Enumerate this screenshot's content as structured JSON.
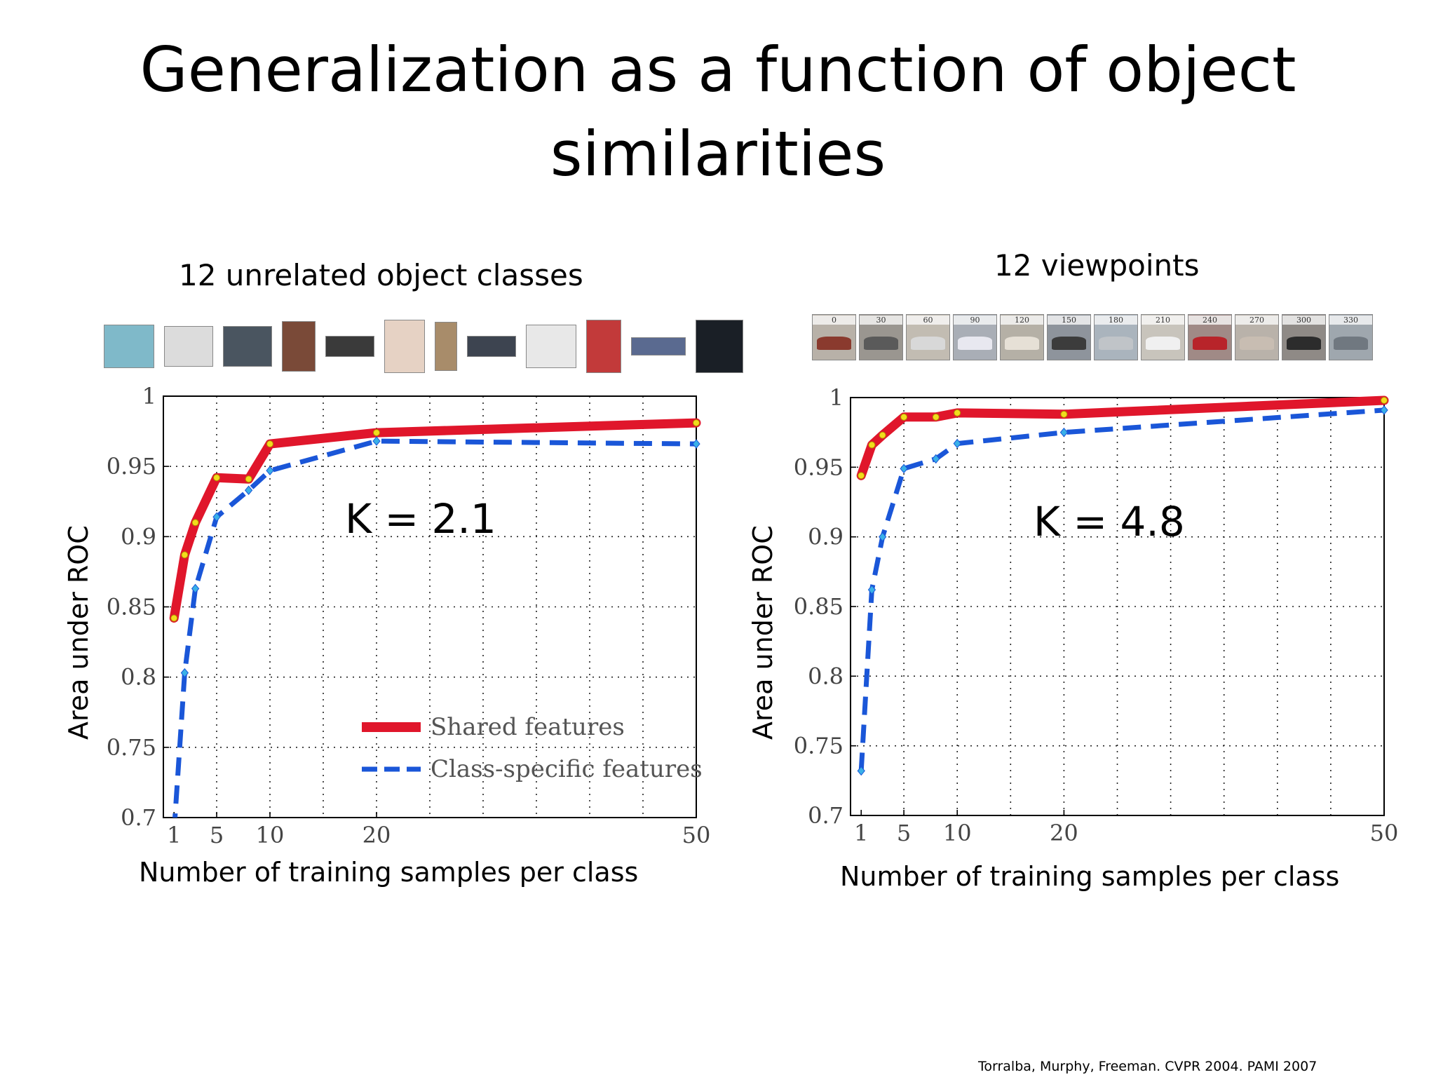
{
  "slide": {
    "title": "Generalization as a function of object similarities",
    "citation": "Torralba, Murphy, Freeman. CVPR 2004. PAMI 2007"
  },
  "panels": {
    "left": {
      "subtitle": "12 unrelated object classes",
      "k_label": "K = 2.1",
      "ylabel": "Area under ROC",
      "xlabel": "Number of training samples per class",
      "thumbnails": [
        "#7fb9c9",
        "#dcdcdc",
        "#4a5560",
        "#7a4a38",
        "#3a3a3a",
        "#e6d2c4",
        "#a88c6a",
        "#3d4450",
        "#e8e8e8",
        "#c23a3a",
        "#5a6a90",
        "#1a1f26"
      ]
    },
    "right": {
      "subtitle": "12 viewpoints",
      "k_label": "K = 4.8",
      "ylabel": "Area under ROC",
      "xlabel": "Number of training samples per class",
      "viewpoints": [
        "0",
        "30",
        "60",
        "90",
        "120",
        "150",
        "180",
        "210",
        "240",
        "270",
        "300",
        "330"
      ]
    }
  },
  "colors": {
    "shared": "#e0162b",
    "class_specific": "#1a56d8",
    "shared_marker": "#f2dd1c",
    "class_specific_marker": "#39b0e8"
  },
  "chart_data": [
    {
      "type": "line",
      "x_ticks": [
        1,
        5,
        10,
        20,
        50
      ],
      "y_ticks": [
        0.7,
        0.75,
        0.8,
        0.85,
        0.9,
        0.95,
        1
      ],
      "y_tick_labels": [
        "0.7",
        "0.75",
        "0.8",
        "0.85",
        "0.9",
        "0.95",
        "1"
      ],
      "xlim": [
        0,
        50
      ],
      "ylim": [
        0.7,
        1
      ],
      "grid": true,
      "legend_position": "bottom-right",
      "series": [
        {
          "name": "Shared features",
          "style": "solid",
          "x": [
            1,
            2,
            3,
            5,
            8,
            10,
            20,
            50
          ],
          "y": [
            0.842,
            0.887,
            0.91,
            0.942,
            0.941,
            0.966,
            0.974,
            0.981
          ]
        },
        {
          "name": "Class-specific features",
          "style": "dashed",
          "x": [
            1,
            2,
            3,
            5,
            8,
            10,
            20,
            50
          ],
          "y": [
            0.69,
            0.803,
            0.863,
            0.914,
            0.933,
            0.947,
            0.968,
            0.966
          ]
        }
      ]
    },
    {
      "type": "line",
      "x_ticks": [
        1,
        5,
        10,
        20,
        50
      ],
      "y_ticks": [
        0.7,
        0.75,
        0.8,
        0.85,
        0.9,
        0.95,
        1
      ],
      "y_tick_labels": [
        "0.7",
        "0.75",
        "0.8",
        "0.85",
        "0.9",
        "0.95",
        "1"
      ],
      "xlim": [
        0,
        50
      ],
      "ylim": [
        0.7,
        1
      ],
      "grid": true,
      "series": [
        {
          "style": "solid",
          "x": [
            1,
            2,
            3,
            5,
            8,
            10,
            20,
            50
          ],
          "y": [
            0.944,
            0.966,
            0.973,
            0.986,
            0.986,
            0.989,
            0.988,
            0.998
          ]
        },
        {
          "style": "dashed",
          "x": [
            1,
            2,
            3,
            5,
            8,
            10,
            20,
            50
          ],
          "y": [
            0.732,
            0.862,
            0.9,
            0.949,
            0.956,
            0.967,
            0.975,
            0.991
          ]
        }
      ]
    }
  ]
}
